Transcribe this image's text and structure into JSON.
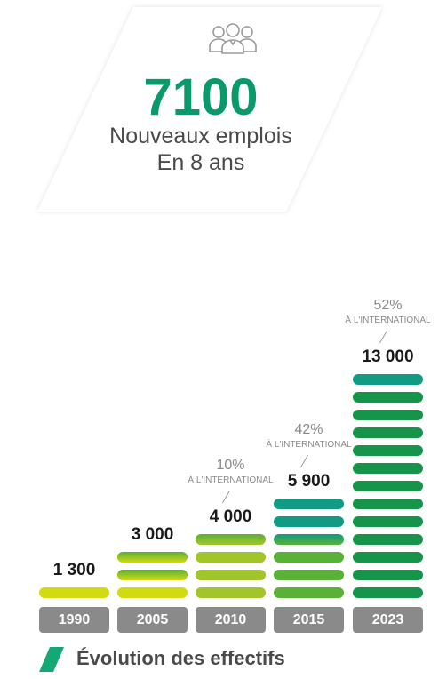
{
  "hero": {
    "number": "7100",
    "line1": "Nouveaux emplois",
    "line2": "En 8 ans",
    "icon": "people-group-icon"
  },
  "chart_data": {
    "type": "bar",
    "title": "Évolution des effectifs",
    "categories": [
      "1990",
      "2005",
      "2010",
      "2015",
      "2023"
    ],
    "values": [
      1300,
      3000,
      4000,
      5900,
      13000
    ],
    "value_labels": [
      "1 300",
      "3 000",
      "4 000",
      "5 900",
      "13 000"
    ],
    "annotations": [
      {
        "category": "2010",
        "percent": "10%",
        "text": "À L'INTERNATIONAL"
      },
      {
        "category": "2015",
        "percent": "42%",
        "text": "À L'INTERNATIONAL"
      },
      {
        "category": "2023",
        "percent": "52%",
        "text": "À L'INTERNATIONAL"
      }
    ],
    "colors": {
      "yellow": "#d2da12",
      "lime": "#a3c52c",
      "green": "#5bb037",
      "dark_green": "#16954a",
      "teal": "#119a84",
      "year_box": "#8a8a8a"
    }
  },
  "footer": {
    "title": "Évolution des effectifs"
  }
}
